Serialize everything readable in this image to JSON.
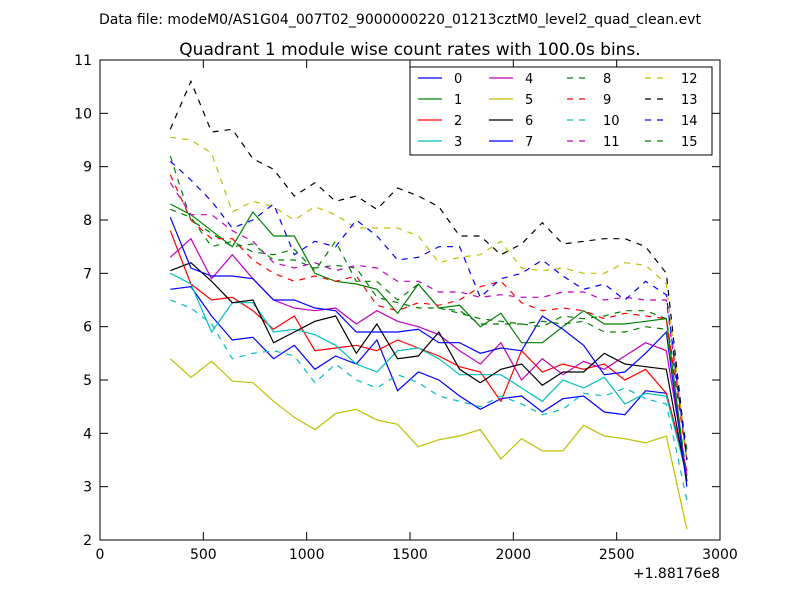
{
  "chart_data": {
    "type": "line",
    "suptitle": "Data file: modeM0/AS1G04_007T02_9000000220_01213cztM0_level2_quad_clean.evt",
    "title": "Quadrant 1 module wise count rates with 100.0s bins.",
    "xlabel": "",
    "ylabel": "",
    "x_offset_label": "+1.88176e8",
    "xlim": [
      0,
      3000
    ],
    "ylim": [
      2,
      11
    ],
    "xticks": [
      0,
      500,
      1000,
      1500,
      2000,
      2500,
      3000
    ],
    "yticks": [
      2,
      3,
      4,
      5,
      6,
      7,
      8,
      9,
      10,
      11
    ],
    "grid": false,
    "legend_position": "top-right",
    "x": [
      340,
      440,
      540,
      640,
      740,
      840,
      940,
      1040,
      1140,
      1240,
      1340,
      1440,
      1540,
      1640,
      1740,
      1840,
      1940,
      2040,
      2140,
      2240,
      2340,
      2440,
      2540,
      2640,
      2740,
      2840
    ],
    "series": [
      {
        "name": "0",
        "color": "#0000ff",
        "dash": "solid",
        "values": [
          6.7,
          6.75,
          6.2,
          5.75,
          5.8,
          5.4,
          5.65,
          5.2,
          5.45,
          5.3,
          5.75,
          4.8,
          5.15,
          5.0,
          4.7,
          4.45,
          4.65,
          4.7,
          4.4,
          4.65,
          4.7,
          4.4,
          4.35,
          4.8,
          4.75,
          3.3
        ]
      },
      {
        "name": "1",
        "color": "#008000",
        "dash": "solid",
        "values": [
          8.3,
          8.1,
          7.8,
          7.5,
          8.15,
          7.7,
          7.7,
          7.0,
          6.85,
          6.8,
          6.7,
          6.25,
          6.8,
          6.35,
          6.4,
          6.0,
          6.25,
          5.7,
          5.7,
          6.0,
          6.3,
          6.05,
          6.05,
          6.1,
          6.15,
          3.1
        ]
      },
      {
        "name": "2",
        "color": "#ff0000",
        "dash": "solid",
        "values": [
          7.8,
          6.8,
          6.5,
          6.55,
          6.3,
          5.95,
          6.2,
          5.55,
          5.6,
          5.65,
          5.55,
          5.75,
          5.6,
          5.45,
          5.25,
          5.15,
          4.6,
          5.55,
          5.15,
          5.3,
          5.2,
          5.3,
          5.0,
          5.2,
          4.75,
          3.3
        ]
      },
      {
        "name": "3",
        "color": "#00bfbf",
        "dash": "solid",
        "values": [
          7.0,
          6.8,
          5.9,
          6.45,
          6.45,
          5.9,
          5.95,
          5.85,
          5.65,
          5.3,
          5.15,
          5.55,
          5.6,
          5.4,
          5.1,
          5.1,
          5.1,
          4.85,
          4.6,
          5.0,
          4.85,
          5.05,
          4.55,
          4.75,
          4.7,
          3.2
        ]
      },
      {
        "name": "4",
        "color": "#bf00bf",
        "dash": "solid",
        "values": [
          7.3,
          7.65,
          6.9,
          7.35,
          6.9,
          6.5,
          6.35,
          6.3,
          6.35,
          6.05,
          6.3,
          6.1,
          6.0,
          5.85,
          5.55,
          5.3,
          5.7,
          5.0,
          5.4,
          5.1,
          5.35,
          5.2,
          5.45,
          5.7,
          5.55,
          3.2
        ]
      },
      {
        "name": "5",
        "color": "#bfbf00",
        "dash": "solid",
        "values": [
          5.4,
          5.05,
          5.35,
          4.98,
          4.95,
          4.6,
          4.3,
          4.07,
          4.37,
          4.45,
          4.25,
          4.17,
          3.75,
          3.88,
          3.95,
          4.07,
          3.52,
          3.9,
          3.67,
          3.67,
          4.15,
          3.95,
          3.9,
          3.82,
          3.95,
          2.2
        ]
      },
      {
        "name": "6",
        "color": "#000000",
        "dash": "solid",
        "values": [
          7.05,
          7.2,
          6.85,
          6.45,
          6.5,
          5.7,
          5.9,
          6.1,
          6.2,
          5.5,
          6.05,
          5.4,
          5.45,
          5.9,
          5.2,
          4.95,
          5.2,
          5.3,
          4.9,
          5.15,
          5.15,
          5.5,
          5.3,
          5.25,
          5.2,
          3.1
        ]
      },
      {
        "name": "7",
        "color": "#0000ff",
        "dash": "solid",
        "values": [
          8.05,
          7.1,
          6.95,
          6.95,
          6.9,
          6.5,
          6.5,
          6.35,
          6.3,
          5.9,
          5.9,
          5.9,
          5.95,
          5.7,
          5.7,
          5.5,
          5.6,
          5.55,
          6.2,
          5.95,
          5.65,
          5.1,
          5.15,
          5.5,
          5.9,
          3.0
        ]
      },
      {
        "name": "8",
        "color": "#008000",
        "dash": "dashed",
        "values": [
          9.2,
          8.0,
          7.75,
          7.5,
          7.55,
          7.25,
          7.25,
          7.1,
          7.15,
          7.1,
          6.55,
          6.45,
          6.35,
          6.35,
          6.25,
          6.15,
          6.1,
          6.05,
          6.0,
          6.2,
          6.15,
          6.2,
          6.3,
          6.3,
          6.15,
          3.7
        ]
      },
      {
        "name": "9",
        "color": "#ff0000",
        "dash": "dashed",
        "values": [
          8.85,
          8.0,
          7.65,
          7.65,
          7.25,
          7.0,
          6.85,
          6.95,
          6.85,
          6.95,
          6.4,
          6.3,
          6.45,
          6.4,
          6.5,
          6.75,
          6.85,
          6.45,
          6.3,
          6.35,
          6.3,
          6.15,
          6.25,
          6.2,
          6.15,
          3.5
        ]
      },
      {
        "name": "10",
        "color": "#00bfbf",
        "dash": "dashed",
        "values": [
          6.5,
          6.35,
          6.05,
          5.4,
          5.5,
          5.55,
          5.45,
          4.95,
          5.3,
          5.0,
          4.85,
          5.1,
          4.95,
          4.7,
          4.6,
          4.5,
          4.7,
          4.55,
          4.35,
          4.45,
          4.75,
          4.7,
          4.85,
          4.65,
          4.55,
          2.75
        ]
      },
      {
        "name": "11",
        "color": "#bf00bf",
        "dash": "dashed",
        "values": [
          8.7,
          8.1,
          8.1,
          7.8,
          7.6,
          7.2,
          7.1,
          7.2,
          7.05,
          7.15,
          7.1,
          6.85,
          6.85,
          6.65,
          6.65,
          6.55,
          6.6,
          6.55,
          6.55,
          6.65,
          6.65,
          6.5,
          6.55,
          6.5,
          6.5,
          3.5
        ]
      },
      {
        "name": "12",
        "color": "#bfbf00",
        "dash": "dashed",
        "values": [
          9.55,
          9.5,
          9.25,
          8.15,
          8.35,
          8.25,
          8.0,
          8.25,
          8.1,
          7.85,
          7.85,
          7.85,
          7.7,
          7.2,
          7.3,
          7.35,
          7.6,
          7.1,
          7.05,
          7.1,
          7.0,
          7.0,
          7.2,
          7.15,
          6.8,
          3.5
        ]
      },
      {
        "name": "13",
        "color": "#000000",
        "dash": "dashed",
        "values": [
          9.7,
          10.6,
          9.65,
          9.7,
          9.15,
          8.95,
          8.45,
          8.7,
          8.35,
          8.45,
          8.2,
          8.6,
          8.45,
          8.25,
          7.7,
          7.7,
          7.35,
          7.55,
          7.95,
          7.55,
          7.6,
          7.65,
          7.65,
          7.5,
          7.0,
          3.5
        ]
      },
      {
        "name": "14",
        "color": "#0000ff",
        "dash": "dashed",
        "values": [
          9.1,
          8.75,
          8.35,
          7.85,
          8.0,
          8.3,
          7.35,
          7.6,
          7.5,
          8.0,
          7.7,
          7.25,
          7.3,
          7.5,
          7.5,
          6.55,
          6.9,
          7.0,
          7.25,
          6.95,
          6.7,
          6.8,
          6.5,
          6.85,
          6.6,
          3.5
        ]
      },
      {
        "name": "15",
        "color": "#008000",
        "dash": "dashed",
        "values": [
          8.2,
          8.05,
          7.5,
          7.6,
          7.4,
          7.35,
          7.45,
          7.05,
          7.6,
          6.85,
          6.85,
          6.5,
          6.8,
          6.35,
          6.3,
          6.05,
          6.05,
          6.05,
          6.1,
          6.05,
          6.1,
          5.9,
          5.9,
          6.0,
          5.95,
          3.2
        ]
      }
    ]
  }
}
